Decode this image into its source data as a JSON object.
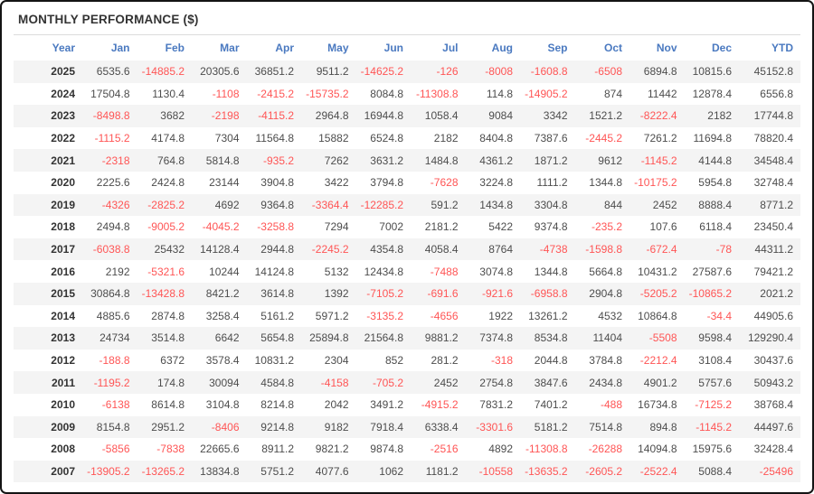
{
  "panel": {
    "title": "MONTHLY PERFORMANCE ($)"
  },
  "colors": {
    "frame_border": "#141414",
    "title_text": "#333333",
    "header_text": "#4a79c0",
    "positive_value": "#4d4d4d",
    "negative_value": "#ff5555",
    "row_stripe": "#f4f4f4"
  },
  "table": {
    "columns": [
      "Year",
      "Jan",
      "Feb",
      "Mar",
      "Apr",
      "May",
      "Jun",
      "Jul",
      "Aug",
      "Sep",
      "Oct",
      "Nov",
      "Dec",
      "YTD"
    ],
    "rows": [
      {
        "year": "2025",
        "values": [
          "6535.6",
          "-14885.2",
          "20305.6",
          "36851.2",
          "9511.2",
          "-14625.2",
          "-126",
          "-8008",
          "-1608.8",
          "-6508",
          "6894.8",
          "10815.6",
          "45152.8"
        ]
      },
      {
        "year": "2024",
        "values": [
          "17504.8",
          "1130.4",
          "-1108",
          "-2415.2",
          "-15735.2",
          "8084.8",
          "-11308.8",
          "114.8",
          "-14905.2",
          "874",
          "11442",
          "12878.4",
          "6556.8"
        ]
      },
      {
        "year": "2023",
        "values": [
          "-8498.8",
          "3682",
          "-2198",
          "-4115.2",
          "2964.8",
          "16944.8",
          "1058.4",
          "9084",
          "3342",
          "1521.2",
          "-8222.4",
          "2182",
          "17744.8"
        ]
      },
      {
        "year": "2022",
        "values": [
          "-1115.2",
          "4174.8",
          "7304",
          "11564.8",
          "15882",
          "6524.8",
          "2182",
          "8404.8",
          "7387.6",
          "-2445.2",
          "7261.2",
          "11694.8",
          "78820.4"
        ]
      },
      {
        "year": "2021",
        "values": [
          "-2318",
          "764.8",
          "5814.8",
          "-935.2",
          "7262",
          "3631.2",
          "1484.8",
          "4361.2",
          "1871.2",
          "9612",
          "-1145.2",
          "4144.8",
          "34548.4"
        ]
      },
      {
        "year": "2020",
        "values": [
          "2225.6",
          "2424.8",
          "23144",
          "3904.8",
          "3422",
          "3794.8",
          "-7628",
          "3224.8",
          "1111.2",
          "1344.8",
          "-10175.2",
          "5954.8",
          "32748.4"
        ]
      },
      {
        "year": "2019",
        "values": [
          "-4326",
          "-2825.2",
          "4692",
          "9364.8",
          "-3364.4",
          "-12285.2",
          "591.2",
          "1434.8",
          "3304.8",
          "844",
          "2452",
          "8888.4",
          "8771.2"
        ]
      },
      {
        "year": "2018",
        "values": [
          "2494.8",
          "-9005.2",
          "-4045.2",
          "-3258.8",
          "7294",
          "7002",
          "2181.2",
          "5422",
          "9374.8",
          "-235.2",
          "107.6",
          "6118.4",
          "23450.4"
        ]
      },
      {
        "year": "2017",
        "values": [
          "-6038.8",
          "25432",
          "14128.4",
          "2944.8",
          "-2245.2",
          "4354.8",
          "4058.4",
          "8764",
          "-4738",
          "-1598.8",
          "-672.4",
          "-78",
          "44311.2"
        ]
      },
      {
        "year": "2016",
        "values": [
          "2192",
          "-5321.6",
          "10244",
          "14124.8",
          "5132",
          "12434.8",
          "-7488",
          "3074.8",
          "1344.8",
          "5664.8",
          "10431.2",
          "27587.6",
          "79421.2"
        ]
      },
      {
        "year": "2015",
        "values": [
          "30864.8",
          "-13428.8",
          "8421.2",
          "3614.8",
          "1392",
          "-7105.2",
          "-691.6",
          "-921.6",
          "-6958.8",
          "2904.8",
          "-5205.2",
          "-10865.2",
          "2021.2"
        ]
      },
      {
        "year": "2014",
        "values": [
          "4885.6",
          "2874.8",
          "3258.4",
          "5161.2",
          "5971.2",
          "-3135.2",
          "-4656",
          "1922",
          "13261.2",
          "4532",
          "10864.8",
          "-34.4",
          "44905.6"
        ]
      },
      {
        "year": "2013",
        "values": [
          "24734",
          "3514.8",
          "6642",
          "5654.8",
          "25894.8",
          "21564.8",
          "9881.2",
          "7374.8",
          "8534.8",
          "11404",
          "-5508",
          "9598.4",
          "129290.4"
        ]
      },
      {
        "year": "2012",
        "values": [
          "-188.8",
          "6372",
          "3578.4",
          "10831.2",
          "2304",
          "852",
          "281.2",
          "-318",
          "2044.8",
          "3784.8",
          "-2212.4",
          "3108.4",
          "30437.6"
        ]
      },
      {
        "year": "2011",
        "values": [
          "-1195.2",
          "174.8",
          "30094",
          "4584.8",
          "-4158",
          "-705.2",
          "2452",
          "2754.8",
          "3847.6",
          "2434.8",
          "4901.2",
          "5757.6",
          "50943.2"
        ]
      },
      {
        "year": "2010",
        "values": [
          "-6138",
          "8614.8",
          "3104.8",
          "8214.8",
          "2042",
          "3491.2",
          "-4915.2",
          "7831.2",
          "7401.2",
          "-488",
          "16734.8",
          "-7125.2",
          "38768.4"
        ]
      },
      {
        "year": "2009",
        "values": [
          "8154.8",
          "2951.2",
          "-8406",
          "9214.8",
          "9182",
          "7918.4",
          "6338.4",
          "-3301.6",
          "5181.2",
          "7514.8",
          "894.8",
          "-1145.2",
          "44497.6"
        ]
      },
      {
        "year": "2008",
        "values": [
          "-5856",
          "-7838",
          "22665.6",
          "8911.2",
          "9821.2",
          "9874.8",
          "-2516",
          "4892",
          "-11308.8",
          "-26288",
          "14094.8",
          "15975.6",
          "32428.4"
        ]
      },
      {
        "year": "2007",
        "values": [
          "-13905.2",
          "-13265.2",
          "13834.8",
          "5751.2",
          "4077.6",
          "1062",
          "1181.2",
          "-10558",
          "-13635.2",
          "-2605.2",
          "-2522.4",
          "5088.4",
          "-25496"
        ]
      }
    ]
  }
}
